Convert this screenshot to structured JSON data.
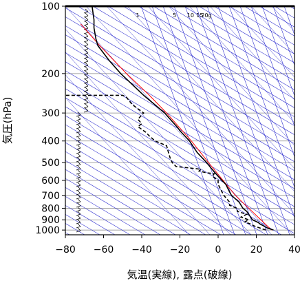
{
  "chart_data": {
    "type": "line",
    "subtype": "skew-T log-p emagram",
    "xlabel": "気温(実線), 露点(破線)",
    "ylabel": "気圧(hPa)",
    "xlim": [
      -80,
      40
    ],
    "ylim": [
      1050,
      100
    ],
    "yscale": "log",
    "x_ticks": [
      "−80",
      "−60",
      "−40",
      "−20",
      "0",
      "20",
      "40"
    ],
    "x_tick_values": [
      -80,
      -60,
      -40,
      -20,
      0,
      20,
      40
    ],
    "y_ticks": [
      "100",
      "200",
      "300",
      "400",
      "500",
      "600",
      "700",
      "800",
      "900",
      "1000"
    ],
    "y_tick_values": [
      100,
      200,
      300,
      400,
      500,
      600,
      700,
      800,
      900,
      1000
    ],
    "grid": true,
    "mixing_ratio_labels": [
      "1",
      "5",
      "10",
      "15",
      "20g"
    ],
    "mixing_ratio_values": [
      1,
      5,
      10,
      15,
      20
    ],
    "colors": {
      "temperature": "#000000",
      "dewpoint": "#000000",
      "reference_profile": "#ff0000",
      "guide_lines": "#3030d0",
      "grid": "#888888",
      "frame": "#000000"
    },
    "series": [
      {
        "name": "気温",
        "style": "solid",
        "points": [
          [
            1000,
            29
          ],
          [
            980,
            26
          ],
          [
            960,
            24
          ],
          [
            940,
            22
          ],
          [
            925,
            21
          ],
          [
            900,
            18
          ],
          [
            875,
            17
          ],
          [
            850,
            16
          ],
          [
            825,
            15
          ],
          [
            800,
            13
          ],
          [
            775,
            12
          ],
          [
            750,
            11
          ],
          [
            725,
            9
          ],
          [
            700,
            7
          ],
          [
            675,
            6
          ],
          [
            650,
            5
          ],
          [
            625,
            4
          ],
          [
            600,
            2
          ],
          [
            575,
            0
          ],
          [
            550,
            -2
          ],
          [
            525,
            -4
          ],
          [
            500,
            -6
          ],
          [
            450,
            -11
          ],
          [
            400,
            -15
          ],
          [
            360,
            -20
          ],
          [
            350,
            -21
          ],
          [
            300,
            -28
          ],
          [
            250,
            -39
          ],
          [
            200,
            -51
          ],
          [
            175,
            -57
          ],
          [
            150,
            -63
          ],
          [
            140,
            -64
          ],
          [
            125,
            -65
          ],
          [
            115,
            -65
          ],
          [
            100,
            -66
          ]
        ]
      },
      {
        "name": "露点",
        "style": "dashed",
        "points": [
          [
            1000,
            25
          ],
          [
            980,
            22
          ],
          [
            960,
            19
          ],
          [
            940,
            17
          ],
          [
            920,
            14
          ],
          [
            900,
            16
          ],
          [
            875,
            12
          ],
          [
            850,
            15
          ],
          [
            825,
            10
          ],
          [
            800,
            10
          ],
          [
            775,
            6
          ],
          [
            750,
            6
          ],
          [
            700,
            3
          ],
          [
            650,
            1
          ],
          [
            625,
            0
          ],
          [
            600,
            0
          ],
          [
            575,
            -3
          ],
          [
            560,
            -2
          ],
          [
            555,
            -6
          ],
          [
            545,
            -10
          ],
          [
            535,
            -9
          ],
          [
            520,
            -22
          ],
          [
            500,
            -24
          ],
          [
            480,
            -25
          ],
          [
            450,
            -26
          ],
          [
            420,
            -27
          ],
          [
            400,
            -33
          ],
          [
            380,
            -36
          ],
          [
            365,
            -38
          ],
          [
            345,
            -42
          ],
          [
            335,
            -40
          ],
          [
            320,
            -42
          ],
          [
            300,
            -39
          ],
          [
            275,
            -45
          ],
          [
            255,
            -48
          ],
          [
            250,
            -50
          ],
          [
            250,
            -70
          ],
          [
            250,
            -80
          ]
        ]
      }
    ],
    "reference_curve": {
      "style": "red solid",
      "points": [
        [
          1000,
          28
        ],
        [
          700,
          9
        ],
        [
          500,
          -5
        ],
        [
          400,
          -14
        ],
        [
          300,
          -27
        ],
        [
          250,
          -36
        ],
        [
          200,
          -48
        ],
        [
          150,
          -62
        ],
        [
          120,
          -72
        ]
      ]
    },
    "wind_barbs": "left side column, levels 1000 to 100 hPa"
  }
}
